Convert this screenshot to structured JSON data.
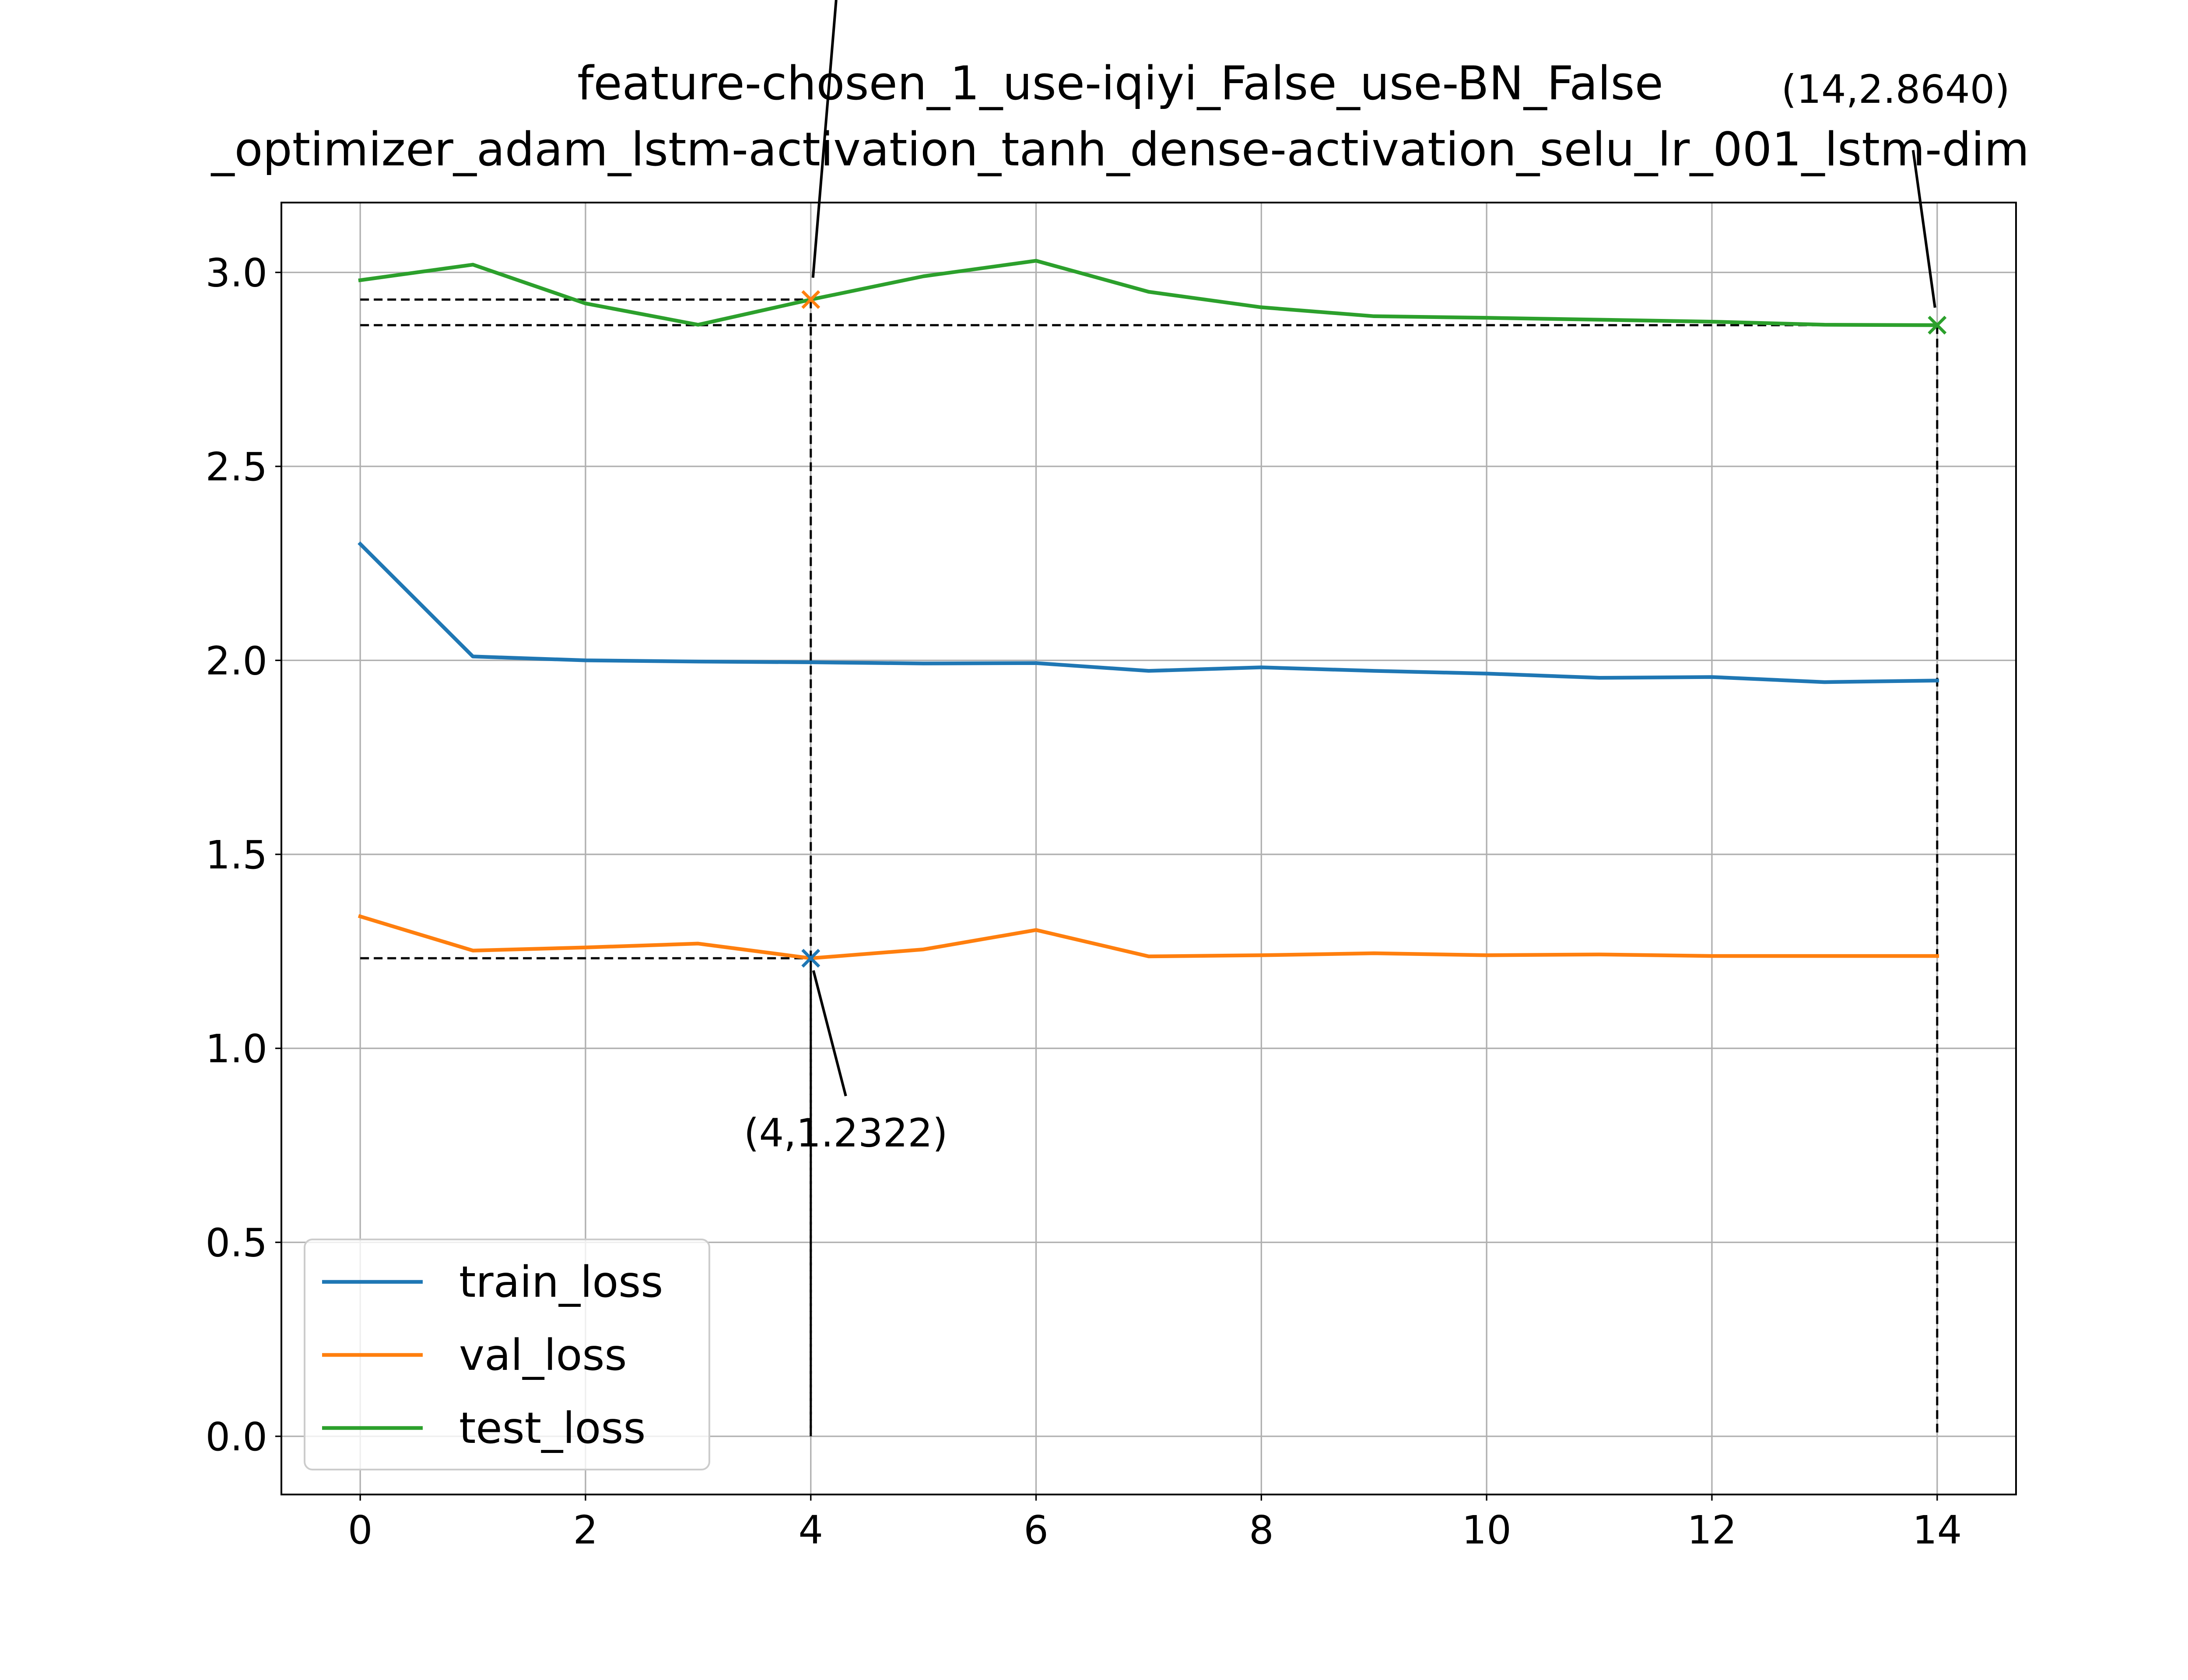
{
  "chart_data": {
    "type": "line",
    "title_lines": [
      "feature-chosen_1_use-iqiyi_False_use-BN_False",
      "_optimizer_adam_lstm-activation_tanh_dense-activation_selu_lr_001_lstm-dim"
    ],
    "xlabel": "",
    "ylabel": "",
    "xlim": [
      -0.7,
      14.7
    ],
    "ylim": [
      -0.15,
      3.18
    ],
    "x_ticks": [
      "0",
      "2",
      "4",
      "6",
      "8",
      "10",
      "12",
      "14"
    ],
    "y_ticks": [
      "0.0",
      "0.5",
      "1.0",
      "1.5",
      "2.0",
      "2.5",
      "3.0"
    ],
    "grid": true,
    "legend_position": "lower-left",
    "x": [
      0,
      1,
      2,
      3,
      4,
      5,
      6,
      7,
      8,
      9,
      10,
      11,
      12,
      13,
      14
    ],
    "series": [
      {
        "name": "train_loss",
        "color": "#1f77b4",
        "values": [
          2.3,
          2.01,
          2.0,
          1.997,
          1.995,
          1.992,
          1.993,
          1.973,
          1.982,
          1.973,
          1.966,
          1.955,
          1.957,
          1.944,
          1.948
        ]
      },
      {
        "name": "val_loss",
        "color": "#ff7f0e",
        "values": [
          1.34,
          1.252,
          1.26,
          1.27,
          1.2322,
          1.255,
          1.305,
          1.237,
          1.24,
          1.245,
          1.24,
          1.242,
          1.238,
          1.238,
          1.238
        ]
      },
      {
        "name": "test_loss",
        "color": "#2ca02c",
        "values": [
          2.98,
          3.02,
          2.92,
          2.865,
          2.93,
          2.99,
          3.03,
          2.95,
          2.91,
          2.887,
          2.883,
          2.878,
          2.873,
          2.865,
          2.864
        ]
      }
    ],
    "annotations": [
      {
        "label": "(4,1.2322)",
        "x": 4,
        "y": 1.2322,
        "marker_color": "#1f77b4",
        "guide_line_color": "#000000"
      },
      {
        "label": "(14,2.8640)",
        "x": 14,
        "y": 2.864,
        "marker_color": "#2ca02c",
        "guide_line_color": "#000000"
      },
      {
        "label": "",
        "x": 4,
        "y": 2.93,
        "marker_color": "#ff7f0e",
        "guide_line_color": "#000000"
      }
    ]
  }
}
